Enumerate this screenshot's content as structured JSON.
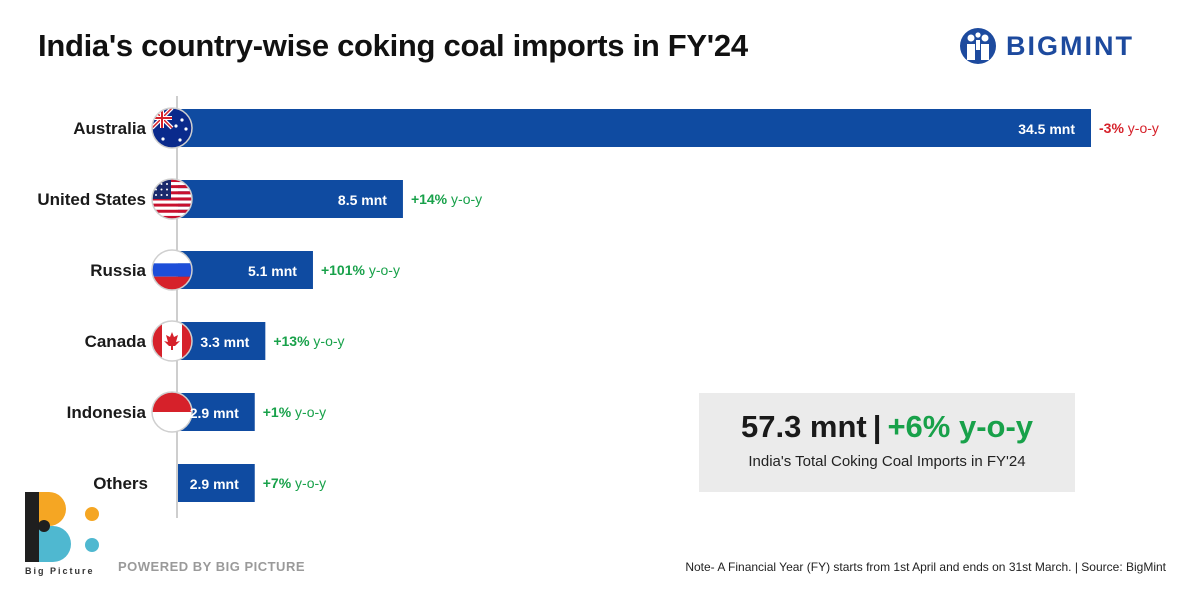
{
  "header": {
    "title": "India's country-wise coking coal imports in FY'24",
    "logo_text": "BIGMINT"
  },
  "chart_data": {
    "type": "bar",
    "orientation": "horizontal",
    "title": "India's country-wise coking coal imports in FY'24",
    "categories": [
      "Australia",
      "United States",
      "Russia",
      "Canada",
      "Indonesia",
      "Others"
    ],
    "values": [
      34.5,
      8.5,
      5.1,
      3.3,
      2.9,
      2.9
    ],
    "unit": "mnt",
    "value_labels": [
      "34.5 mnt",
      "8.5 mnt",
      "5.1 mnt",
      "3.3 mnt",
      "2.9 mnt",
      "2.9 mnt"
    ],
    "yoy_values": [
      "-3%",
      "+14%",
      "+101%",
      "+13%",
      "+1%",
      "+7%"
    ],
    "yoy_suffix": "y-o-y",
    "flags": [
      "australia-flag-icon",
      "usa-flag-icon",
      "russia-flag-icon",
      "canada-flag-icon",
      "indonesia-flag-icon",
      null
    ],
    "bar_color": "#0f4ba1",
    "negative_color": "#d6212a",
    "positive_color": "#18a14a",
    "xlim": [
      0,
      34.5
    ]
  },
  "summary": {
    "total": "57.3 mnt",
    "separator": "|",
    "change": "+6% y-o-y",
    "caption": "India's Total Coking Coal Imports in FY'24"
  },
  "footer": {
    "brand_caption": "Big Picture",
    "powered_by": "POWERED BY BIG PICTURE",
    "note": "Note- A Financial Year (FY) starts from 1st April and ends on 31st March. | Source: BigMint"
  }
}
